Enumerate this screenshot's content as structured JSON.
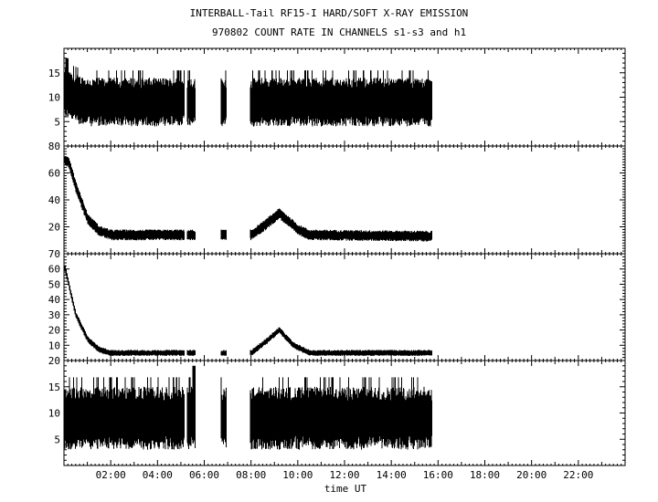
{
  "header": {
    "title_line1": "INTERBALL-Tail RF15-I HARD/SOFT X-RAY EMISSION",
    "title_line2": "970802  COUNT RATE IN CHANNELS s1-s3 and h1"
  },
  "chart_data": {
    "type": "line",
    "x_axis": {
      "label": "time UT",
      "range_hours": [
        0,
        24
      ],
      "tick_labels": [
        "02:00",
        "04:00",
        "06:00",
        "08:00",
        "10:00",
        "12:00",
        "14:00",
        "16:00",
        "18:00",
        "20:00",
        "22:00"
      ],
      "tick_hours": [
        2,
        4,
        6,
        8,
        10,
        12,
        14,
        16,
        18,
        20,
        22
      ]
    },
    "data_gaps_hours": [
      [
        5.15,
        5.25
      ],
      [
        5.6,
        6.7
      ],
      [
        6.95,
        7.95
      ],
      [
        15.75,
        24
      ]
    ],
    "panels": [
      {
        "id": "s1",
        "ylim": [
          0,
          20
        ],
        "y_ticks": [
          5,
          10,
          15
        ],
        "profile": [
          [
            0,
            11
          ],
          [
            0.3,
            10
          ],
          [
            1,
            9
          ],
          [
            16,
            9
          ]
        ],
        "noise_half_range": 5,
        "spikes": [
          [
            0.1,
            18
          ]
        ]
      },
      {
        "id": "s2",
        "ylim": [
          0,
          80
        ],
        "y_ticks": [
          20,
          40,
          60,
          80
        ],
        "profile": [
          [
            0,
            70
          ],
          [
            0.2,
            68
          ],
          [
            0.5,
            50
          ],
          [
            1,
            26
          ],
          [
            1.5,
            17
          ],
          [
            2,
            14
          ],
          [
            8,
            14
          ],
          [
            8.5,
            20
          ],
          [
            9.2,
            30
          ],
          [
            10,
            18
          ],
          [
            10.5,
            14
          ],
          [
            16,
            13
          ]
        ],
        "noise_half_range": 4,
        "spikes": []
      },
      {
        "id": "s3",
        "ylim": [
          0,
          70
        ],
        "y_ticks": [
          10,
          20,
          30,
          40,
          50,
          60,
          70
        ],
        "profile": [
          [
            0,
            63
          ],
          [
            0.2,
            50
          ],
          [
            0.5,
            30
          ],
          [
            1,
            14
          ],
          [
            1.5,
            7
          ],
          [
            2,
            5
          ],
          [
            8,
            5
          ],
          [
            8.6,
            12
          ],
          [
            9.2,
            20
          ],
          [
            9.8,
            10
          ],
          [
            10.5,
            5
          ],
          [
            16,
            5
          ]
        ],
        "noise_half_range": 2,
        "spikes": []
      },
      {
        "id": "h1",
        "ylim": [
          0,
          20
        ],
        "y_ticks": [
          5,
          10,
          15,
          20
        ],
        "profile": [
          [
            0,
            9
          ],
          [
            16,
            9
          ]
        ],
        "noise_half_range": 6,
        "spikes": [
          [
            5.55,
            19
          ]
        ]
      }
    ]
  }
}
